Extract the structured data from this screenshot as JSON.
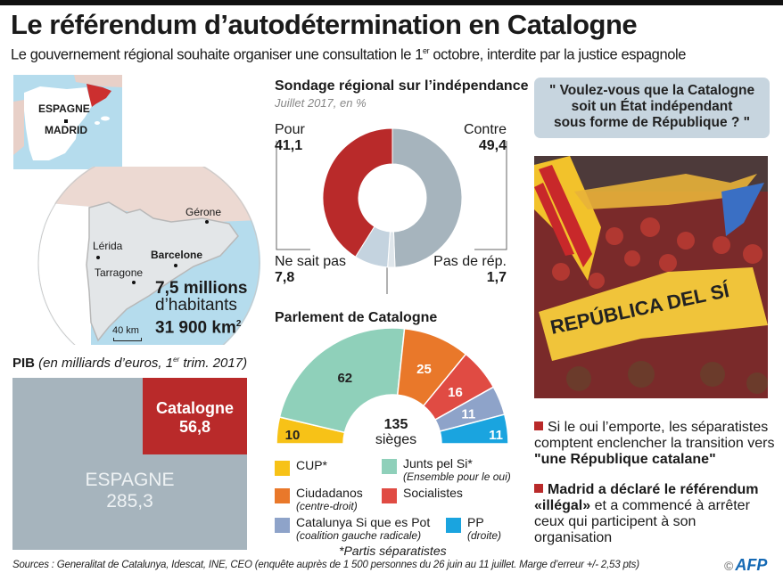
{
  "header": {
    "title": "Le référendum d’autodétermination en Catalogne",
    "subtitle_pre": "Le gouvernement régional souhaite organiser une consultation le 1",
    "subtitle_sup": "er",
    "subtitle_post": " octobre, interdite par la justice espagnole"
  },
  "map": {
    "inset_country": "ESPAGNE",
    "inset_capital": "MADRID",
    "cities": [
      "Gérone",
      "Lérida",
      "Barcelone",
      "Tarragone"
    ],
    "scale": "40 km",
    "population_line1": "7,5 millions",
    "population_line2": "d’habitants",
    "area": "31 900 km",
    "area_sup": "2",
    "colors": {
      "sea": "#b5dced",
      "region": "#cc2f2f",
      "land": "#ffffff",
      "neighbors": "#e8d0c8",
      "catalonia_relief": "#e3e6e8"
    }
  },
  "pib": {
    "title_bold": "PIB",
    "title_italic_pre": " (en milliards d’euros, 1",
    "title_italic_sup": "er",
    "title_italic_post": " trim. 2017)",
    "catalogne_label": "Catalogne",
    "catalogne_value": "56,8",
    "espagne_label": "ESPAGNE",
    "espagne_value": "285,3"
  },
  "question": {
    "text_line1": "\" Voulez-vous que la Catalogne",
    "text_line2": "soit un État indépendant",
    "text_line3": "sous forme de République ? \""
  },
  "photo": {
    "banner_text": "REPÚBLICA DEL SÍ"
  },
  "bullets": [
    {
      "pre": "Si le oui l’emporte, les séparatistes comptent enclencher la transition vers ",
      "bold": "\"une République catalane\"",
      "post": ""
    },
    {
      "bold": "Madrid a déclaré le référendum «illégal»",
      "post": " et a commencé à arrêter ceux qui participent à son organisation"
    }
  ],
  "footer": {
    "sources": "Sources : Generalitat de Catalunya, Idescat, INE, CEO (enquête auprès de 1 500 personnes du 26 juin au 11 juillet. Marge d’erreur +/- 2,53 pts)",
    "copyright": "©",
    "logo": "AFP"
  },
  "chart_data": [
    {
      "type": "pie",
      "variant": "donut",
      "title": "Sondage régional sur l’indépendance",
      "subtitle": "Juillet 2017, en %",
      "categories": [
        "Contre",
        "Pas de rép.",
        "Ne sait pas",
        "Pour"
      ],
      "values": [
        49.4,
        1.7,
        7.8,
        41.1
      ],
      "value_labels": [
        "49,4",
        "1,7",
        "7,8",
        "41,1"
      ],
      "colors": [
        "#a6b4bd",
        "#dfe6eb",
        "#c4d3df",
        "#b92a2a"
      ],
      "start": "top, clockwise"
    },
    {
      "type": "pie",
      "variant": "hemicycle",
      "title": "Parlement de Catalogne",
      "center_value": "135",
      "center_label": "sièges",
      "total": 135,
      "categories": [
        "CUP*",
        "Junts pel Si*",
        "Ciudadanos",
        "Socialistes",
        "Catalunya Si que es Pot",
        "PP"
      ],
      "subtitles": [
        "",
        "(Ensemble pour le oui)",
        "(centre-droit)",
        "",
        "(coalition gauche radicale)",
        "(droite)"
      ],
      "values": [
        10,
        62,
        25,
        16,
        11,
        11
      ],
      "colors": [
        "#f7c217",
        "#8fd0ba",
        "#e9782a",
        "#e04b43",
        "#8ea3c9",
        "#1aa4df"
      ],
      "label_colors": [
        "#222222",
        "#222222",
        "#ffffff",
        "#ffffff",
        "#ffffff",
        "#ffffff"
      ],
      "footnote": "*Partis séparatistes"
    },
    {
      "type": "bar",
      "variant": "area-comparison",
      "title": "PIB (en milliards d’euros, 1er trim. 2017)",
      "categories": [
        "ESPAGNE",
        "Catalogne"
      ],
      "values": [
        285.3,
        56.8
      ],
      "colors": [
        "#a6b4bd",
        "#b92a2a"
      ]
    }
  ]
}
